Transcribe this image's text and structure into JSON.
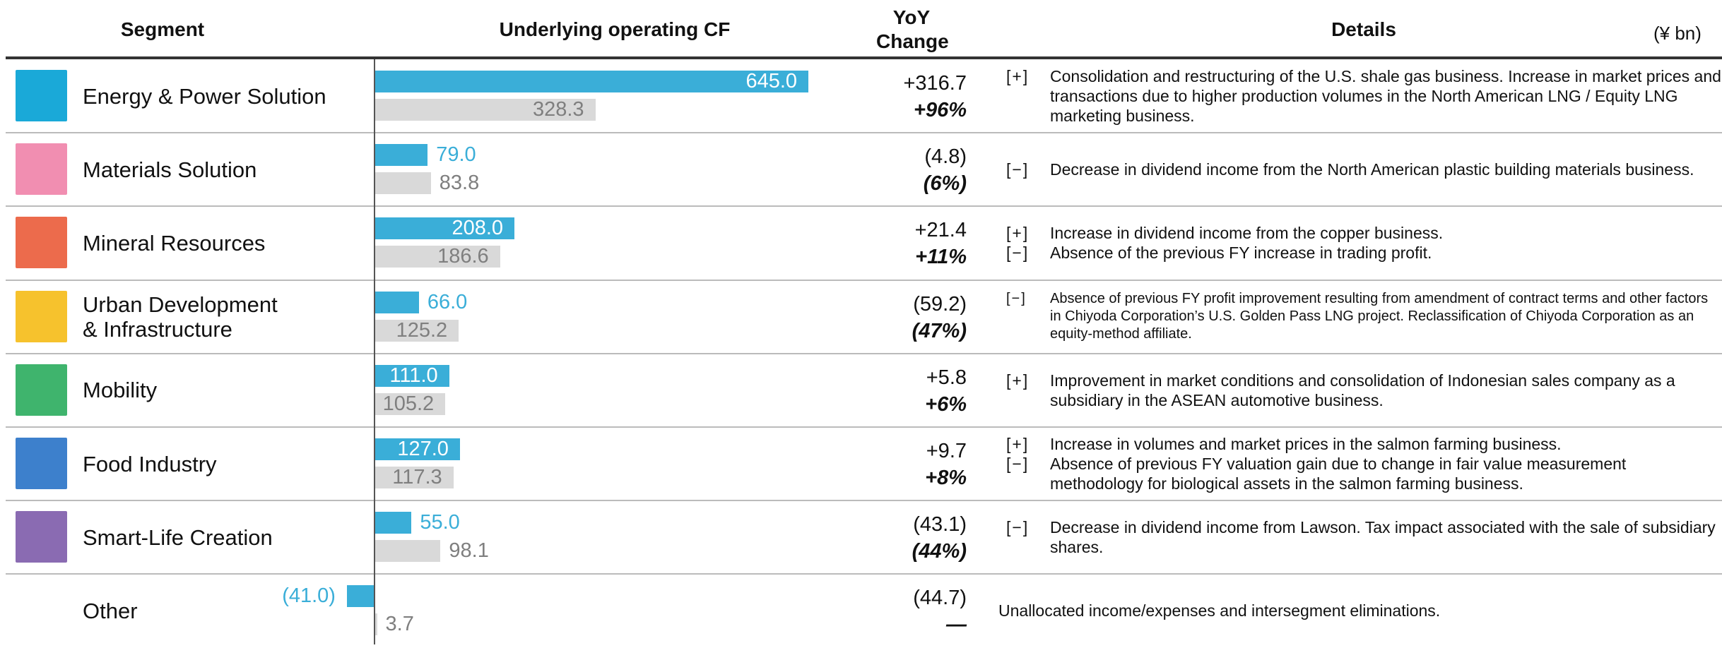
{
  "header": {
    "segment": "Segment",
    "cf": "Underlying operating CF",
    "change": "YoY Change",
    "details": "Details",
    "unit": "(¥ bn)"
  },
  "table": {
    "rows": [
      {
        "name": "Energy & Power Solution",
        "color": "#1aa9d8",
        "current": 645.0,
        "current_label": "645.0",
        "prior": 328.3,
        "prior_label": "328.3",
        "change_label": "+316.7",
        "pct_label": "+96%",
        "details": [
          {
            "sign": "[+]",
            "text": "Consolidation and restructuring of the U.S. shale gas business. Increase in market prices and transactions due to higher production volumes in the North American LNG / Equity LNG marketing business."
          }
        ]
      },
      {
        "name": "Materials Solution",
        "color": "#f18eb1",
        "current": 79.0,
        "current_label": "79.0",
        "prior": 83.8,
        "prior_label": "83.8",
        "change_label": "(4.8)",
        "pct_label": "(6%)",
        "details": [
          {
            "sign": "[−]",
            "text": "Decrease in dividend income from the North American plastic building materials business."
          }
        ]
      },
      {
        "name": "Mineral Resources",
        "color": "#ec6b4c",
        "current": 208.0,
        "current_label": "208.0",
        "prior": 186.6,
        "prior_label": "186.6",
        "change_label": "+21.4",
        "pct_label": "+11%",
        "details": [
          {
            "sign": "[+]",
            "text": "Increase in dividend income from the copper business."
          },
          {
            "sign": "[−]",
            "text": "Absence of the previous FY increase in trading profit."
          }
        ]
      },
      {
        "name": "Urban Development\n& Infrastructure",
        "color": "#f6c22d",
        "current": 66.0,
        "current_label": "66.0",
        "prior": 125.2,
        "prior_label": "125.2",
        "change_label": "(59.2)",
        "pct_label": "(47%)",
        "small": true,
        "details": [
          {
            "sign": "[−]",
            "text": "Absence of previous FY profit improvement resulting from amendment of contract terms and other factors in Chiyoda Corporation’s U.S. Golden Pass LNG project. Reclassification of Chiyoda Corporation as an equity-method affiliate."
          }
        ]
      },
      {
        "name": "Mobility",
        "color": "#3fb46d",
        "current": 111.0,
        "current_label": "111.0",
        "prior": 105.2,
        "prior_label": "105.2",
        "change_label": "+5.8",
        "pct_label": "+6%",
        "details": [
          {
            "sign": "[+]",
            "text": "Improvement in market conditions and consolidation of Indonesian sales company as a subsidiary in the ASEAN automotive business."
          }
        ]
      },
      {
        "name": "Food Industry",
        "color": "#3d80cc",
        "current": 127.0,
        "current_label": "127.0",
        "prior": 117.3,
        "prior_label": "117.3",
        "change_label": "+9.7",
        "pct_label": "+8%",
        "details": [
          {
            "sign": "[+]",
            "text": "Increase in volumes and market prices in the salmon farming business."
          },
          {
            "sign": "[−]",
            "text": "Absence of previous FY valuation gain due to change in fair value measurement methodology for biological assets in the salmon farming business."
          }
        ]
      },
      {
        "name": "Smart-Life Creation",
        "color": "#8a6bb2",
        "current": 55.0,
        "current_label": "55.0",
        "prior": 98.1,
        "prior_label": "98.1",
        "change_label": "(43.1)",
        "pct_label": "(44%)",
        "details": [
          {
            "sign": "[−]",
            "text": "Decrease in dividend income from Lawson. Tax impact associated with the sale of subsidiary shares."
          }
        ]
      },
      {
        "name": "Other",
        "current": -41.0,
        "current_label": "(41.0)",
        "prior": 3.7,
        "prior_label": "3.7",
        "change_label": "(44.7)",
        "pct_label": "—",
        "details": [
          {
            "text": "Unallocated income/expenses and intersegment eliminations."
          }
        ]
      }
    ]
  }
}
